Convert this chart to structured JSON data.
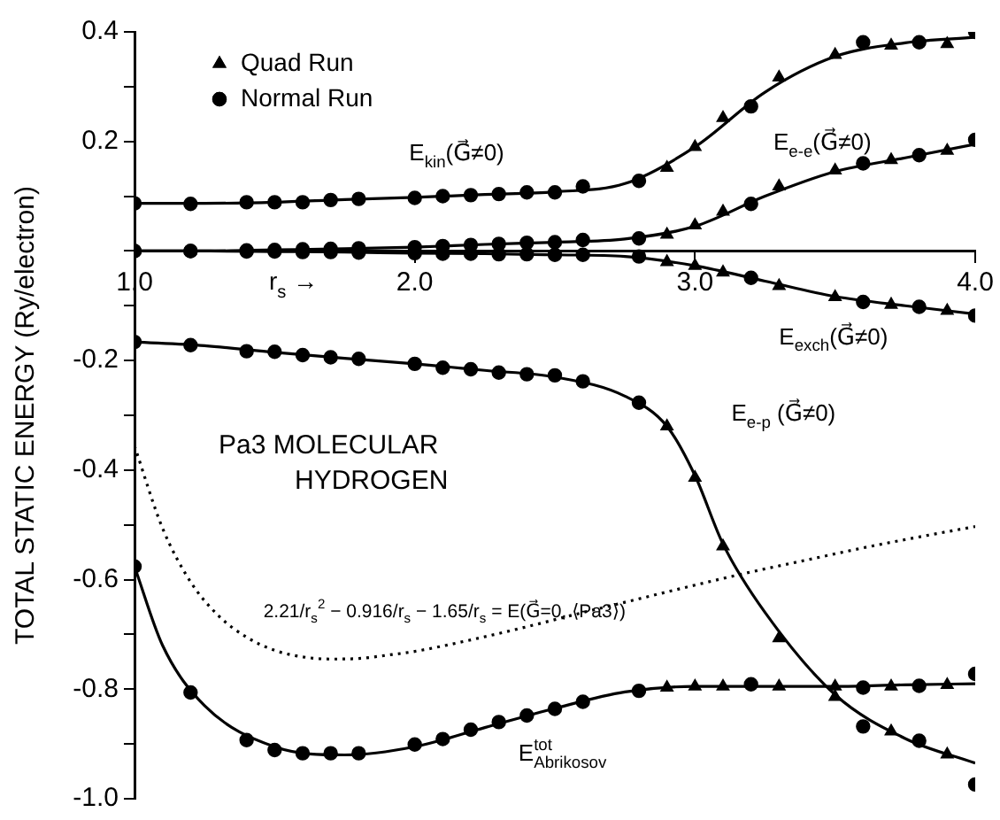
{
  "chart_data": {
    "type": "line",
    "xlabel": "r$_{s}$ →",
    "ylabel": "TOTAL STATIC ENERGY (Ry/electron)",
    "annotations": [
      "Pa3 MOLECULAR\nHYDROGEN"
    ],
    "xlim": [
      1.0,
      4.0
    ],
    "ylim": [
      -1.0,
      0.4
    ],
    "xticks": [
      {
        "value": 1,
        "label": "1.0"
      },
      {
        "value": 2,
        "label": "2.0"
      },
      {
        "value": 3,
        "label": "3.0"
      },
      {
        "value": 4,
        "label": "4.0"
      }
    ],
    "yticks": [
      {
        "value": -1,
        "label": "-1.0"
      },
      {
        "value": -0.9,
        "label": null
      },
      {
        "value": -0.8,
        "label": "-0.8"
      },
      {
        "value": -0.7,
        "label": null
      },
      {
        "value": -0.6,
        "label": "-0.6"
      },
      {
        "value": -0.5,
        "label": null
      },
      {
        "value": -0.4,
        "label": "-0.4"
      },
      {
        "value": -0.3,
        "label": null
      },
      {
        "value": -0.2,
        "label": "-0.2"
      },
      {
        "value": -0.1,
        "label": null
      },
      {
        "value": 0,
        "label": null
      },
      {
        "value": 0.1,
        "label": null
      },
      {
        "value": 0.2,
        "label": "0.2"
      },
      {
        "value": 0.3,
        "label": null
      },
      {
        "value": 0.4,
        "label": "0.4"
      }
    ],
    "legend": "top left",
    "series": [
      {
        "type": "line",
        "name": "E$_{kin}$(G⃗≠0)",
        "color": "#000000",
        "marker": "none",
        "x": [
          1.0,
          1.25,
          1.5,
          1.75,
          2.0,
          2.25,
          2.5,
          2.75,
          3.0,
          3.25,
          3.5,
          3.75,
          4.0
        ],
        "values": [
          0.087,
          0.087,
          0.089,
          0.094,
          0.098,
          0.103,
          0.108,
          0.123,
          0.19,
          0.29,
          0.355,
          0.38,
          0.39
        ]
      },
      {
        "type": "line",
        "name": "E$_{e-e}$(G⃗≠0)",
        "color": "#000000",
        "marker": "none",
        "x": [
          1.0,
          1.25,
          1.5,
          1.75,
          2.0,
          2.25,
          2.5,
          2.75,
          3.0,
          3.25,
          3.5,
          3.75,
          4.0
        ],
        "values": [
          0,
          0,
          0.002,
          0.004,
          0.007,
          0.012,
          0.016,
          0.022,
          0.045,
          0.1,
          0.145,
          0.17,
          0.195
        ]
      },
      {
        "type": "line",
        "name": "E$_{exch}$(G⃗≠0)",
        "color": "#000000",
        "marker": "none",
        "x": [
          1.0,
          1.25,
          1.5,
          1.75,
          2.0,
          2.25,
          2.5,
          2.75,
          3.0,
          3.25,
          3.5,
          3.75,
          4.0
        ],
        "values": [
          0,
          0,
          -0.001,
          -0.002,
          -0.004,
          -0.005,
          -0.007,
          -0.01,
          -0.027,
          -0.055,
          -0.083,
          -0.1,
          -0.115
        ]
      },
      {
        "type": "line",
        "name": "E$_{e-p}$ (G⃗≠0)",
        "color": "#000000",
        "marker": "none",
        "x": [
          1.0,
          1.25,
          1.5,
          1.75,
          2.0,
          2.25,
          2.5,
          2.75,
          2.9,
          3.0,
          3.1,
          3.25,
          3.5,
          3.75,
          4.0
        ],
        "values": [
          -0.166,
          -0.173,
          -0.185,
          -0.196,
          -0.206,
          -0.218,
          -0.23,
          -0.265,
          -0.32,
          -0.41,
          -0.535,
          -0.66,
          -0.81,
          -0.89,
          -0.935
        ]
      },
      {
        "type": "line",
        "name": "E$^{tot}$$_{Abrikosov}$",
        "color": "#000000",
        "marker": "none",
        "x": [
          1.0,
          1.1,
          1.25,
          1.5,
          1.75,
          2.0,
          2.25,
          2.5,
          2.75,
          3.0,
          3.25,
          3.5,
          3.75,
          4.0
        ],
        "values": [
          -0.576,
          -0.72,
          -0.83,
          -0.905,
          -0.92,
          -0.905,
          -0.87,
          -0.835,
          -0.805,
          -0.795,
          -0.795,
          -0.795,
          -0.792,
          -0.79
        ]
      },
      {
        "type": "line",
        "name": "2.21/r$_{s}$$^{2}$ − 0.916/r$_{s}$ − 1.65/r$_{s}$ = E(G⃗=0, ⟨Pa3⟩)",
        "color": "#000000",
        "marker": "none",
        "line_style": "dotted",
        "x": [
          1.0,
          1.1,
          1.2,
          1.3,
          1.4,
          1.5,
          1.6,
          1.7,
          1.8,
          1.9,
          2.0,
          2.2,
          2.4,
          2.6,
          2.8,
          3.0,
          3.2,
          3.4,
          3.6,
          3.8,
          4.0
        ],
        "values": [
          -0.356,
          -0.506,
          -0.604,
          -0.666,
          -0.705,
          -0.729,
          -0.741,
          -0.745,
          -0.744,
          -0.738,
          -0.731,
          -0.71,
          -0.686,
          -0.66,
          -0.635,
          -0.61,
          -0.586,
          -0.564,
          -0.542,
          -0.522,
          -0.503
        ]
      },
      {
        "type": "scatter",
        "name": "Quad Run",
        "color": "#000000",
        "marker": "triangle",
        "x": [
          2.9,
          3.0,
          3.1,
          3.3,
          3.5,
          3.7,
          3.9,
          2.9,
          3.0,
          3.1,
          3.3,
          3.5,
          3.7,
          3.9,
          2.9,
          3.0,
          3.1,
          3.3,
          3.5,
          3.7,
          3.9,
          2.9,
          3.0,
          3.1,
          3.3,
          3.5,
          3.7,
          3.9,
          2.9,
          3.0,
          3.1,
          3.3,
          3.5,
          3.7,
          3.9
        ],
        "values": [
          0.152,
          0.19,
          0.243,
          0.317,
          0.358,
          0.375,
          0.378,
          0.03,
          0.047,
          0.072,
          0.118,
          0.147,
          0.166,
          0.183,
          -0.02,
          -0.027,
          -0.039,
          -0.064,
          -0.084,
          -0.098,
          -0.109,
          -0.32,
          -0.414,
          -0.539,
          -0.707,
          -0.814,
          -0.877,
          -0.919,
          -0.797,
          -0.795,
          -0.795,
          -0.795,
          -0.795,
          -0.795,
          -0.792
        ]
      },
      {
        "type": "scatter",
        "name": "Normal Run",
        "color": "#000000",
        "marker": "circle",
        "x": [
          1.0,
          1.2,
          1.4,
          1.5,
          1.6,
          1.7,
          1.8,
          2.0,
          2.1,
          2.2,
          2.3,
          2.4,
          2.5,
          2.6,
          2.8,
          3.2,
          3.6,
          3.8,
          4.0,
          1.0,
          1.2,
          1.4,
          1.5,
          1.6,
          1.7,
          1.8,
          2.0,
          2.1,
          2.2,
          2.3,
          2.4,
          2.5,
          2.6,
          2.8,
          3.2,
          3.6,
          3.8,
          4.0,
          1.0,
          1.2,
          1.4,
          1.5,
          1.6,
          1.7,
          1.8,
          2.0,
          2.1,
          2.2,
          2.3,
          2.4,
          2.5,
          2.6,
          2.8,
          3.2,
          3.6,
          3.8,
          4.0,
          1.0,
          1.2,
          1.4,
          1.5,
          1.6,
          1.7,
          1.8,
          2.0,
          2.1,
          2.2,
          2.3,
          2.4,
          2.5,
          2.6,
          2.8,
          3.6,
          3.8,
          4.0,
          1.0,
          1.2,
          1.4,
          1.5,
          1.6,
          1.7,
          1.8,
          2.0,
          2.1,
          2.2,
          2.3,
          2.4,
          2.5,
          2.6,
          2.8,
          3.2,
          3.6,
          3.8,
          4.0
        ],
        "values": [
          0.087,
          0.086,
          0.089,
          0.089,
          0.089,
          0.093,
          0.095,
          0.097,
          0.1,
          0.102,
          0.104,
          0.107,
          0.107,
          0.118,
          0.128,
          0.264,
          0.381,
          0.381,
          0.4,
          0,
          0,
          0.001,
          0.002,
          0.003,
          0.004,
          0.005,
          0.007,
          0.009,
          0.011,
          0.013,
          0.015,
          0.016,
          0.02,
          0.023,
          0.086,
          0.16,
          0.175,
          0.203,
          0,
          0,
          -0.001,
          -0.001,
          -0.002,
          -0.002,
          -0.003,
          -0.004,
          -0.005,
          -0.005,
          -0.006,
          -0.006,
          -0.007,
          -0.007,
          -0.01,
          -0.049,
          -0.093,
          -0.102,
          -0.118,
          -0.166,
          -0.172,
          -0.183,
          -0.184,
          -0.19,
          -0.194,
          -0.197,
          -0.206,
          -0.213,
          -0.216,
          -0.222,
          -0.225,
          -0.227,
          -0.238,
          -0.277,
          -0.868,
          -0.894,
          -0.974,
          -0.576,
          -0.806,
          -0.893,
          -0.911,
          -0.917,
          -0.917,
          -0.917,
          -0.901,
          -0.891,
          -0.874,
          -0.86,
          -0.848,
          -0.836,
          -0.823,
          -0.803,
          -0.791,
          -0.797,
          -0.794,
          -0.772
        ]
      }
    ]
  }
}
